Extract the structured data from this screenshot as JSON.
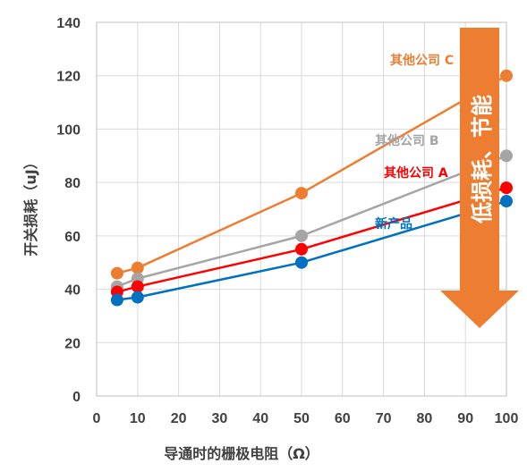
{
  "chart_data": {
    "type": "line",
    "xlabel": "导通时的栅极电阻（Ω）",
    "ylabel": "开关损耗（uJ）",
    "xlim": [
      0,
      100
    ],
    "ylim": [
      0,
      140
    ],
    "x_ticks": [
      0,
      10,
      20,
      30,
      40,
      50,
      60,
      70,
      80,
      90,
      100
    ],
    "y_ticks": [
      0,
      20,
      40,
      60,
      80,
      100,
      120,
      140
    ],
    "grid": true,
    "series": [
      {
        "name": "其他公司 C",
        "color": "#ed7d31",
        "x": [
          5,
          10,
          50,
          100
        ],
        "y": [
          46,
          48,
          76,
          120
        ]
      },
      {
        "name": "其他公司 B",
        "color": "#a5a5a5",
        "x": [
          5,
          10,
          50,
          100
        ],
        "y": [
          41,
          44,
          60,
          90
        ]
      },
      {
        "name": "其他公司 A",
        "color": "#ff0000",
        "x": [
          5,
          10,
          50,
          100
        ],
        "y": [
          39,
          41,
          55,
          78
        ]
      },
      {
        "name": "新产品",
        "color": "#0070c0",
        "x": [
          5,
          10,
          50,
          100
        ],
        "y": [
          36,
          37,
          50,
          73
        ]
      }
    ],
    "annotation": {
      "text": "低损耗、节能",
      "color": "#ed7d31"
    }
  }
}
